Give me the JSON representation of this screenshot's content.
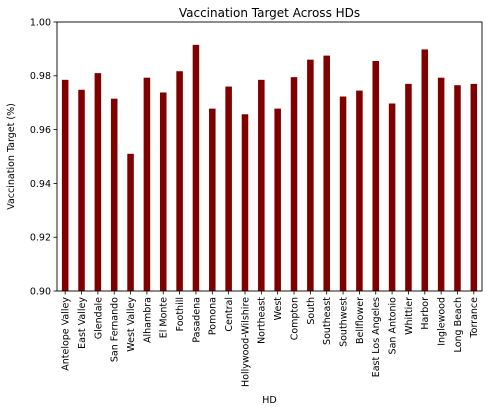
{
  "chart_data": {
    "type": "bar",
    "title": "Vaccination Target Across HDs",
    "xlabel": "HD",
    "ylabel": "Vaccination Target (%)",
    "ylim": [
      0.9,
      1.0
    ],
    "yticks": [
      "0.90",
      "0.92",
      "0.94",
      "0.96",
      "0.98",
      "1.00"
    ],
    "grid": false,
    "bar_color": "#800000",
    "categories": [
      "Antelope Valley",
      "East Valley",
      "Glendale",
      "San Fernando",
      "West Valley",
      "Alhambra",
      "El Monte",
      "Foothill",
      "Pasadena",
      "Pomona",
      "Central",
      "Hollywood-Wilshire",
      "Northeast",
      "West",
      "Compton",
      "South",
      "Southeast",
      "Southwest",
      "Bellflower",
      "East Los Angeles",
      "San Antonio",
      "Whittier",
      "Harbor",
      "Inglewood",
      "Long Beach",
      "Torrance"
    ],
    "values": [
      0.9785,
      0.9748,
      0.981,
      0.9715,
      0.951,
      0.9793,
      0.9738,
      0.9817,
      0.9915,
      0.9678,
      0.976,
      0.9657,
      0.9785,
      0.9678,
      0.9795,
      0.986,
      0.9875,
      0.9723,
      0.9745,
      0.9855,
      0.9697,
      0.977,
      0.9898,
      0.9793,
      0.9765,
      0.977
    ]
  }
}
